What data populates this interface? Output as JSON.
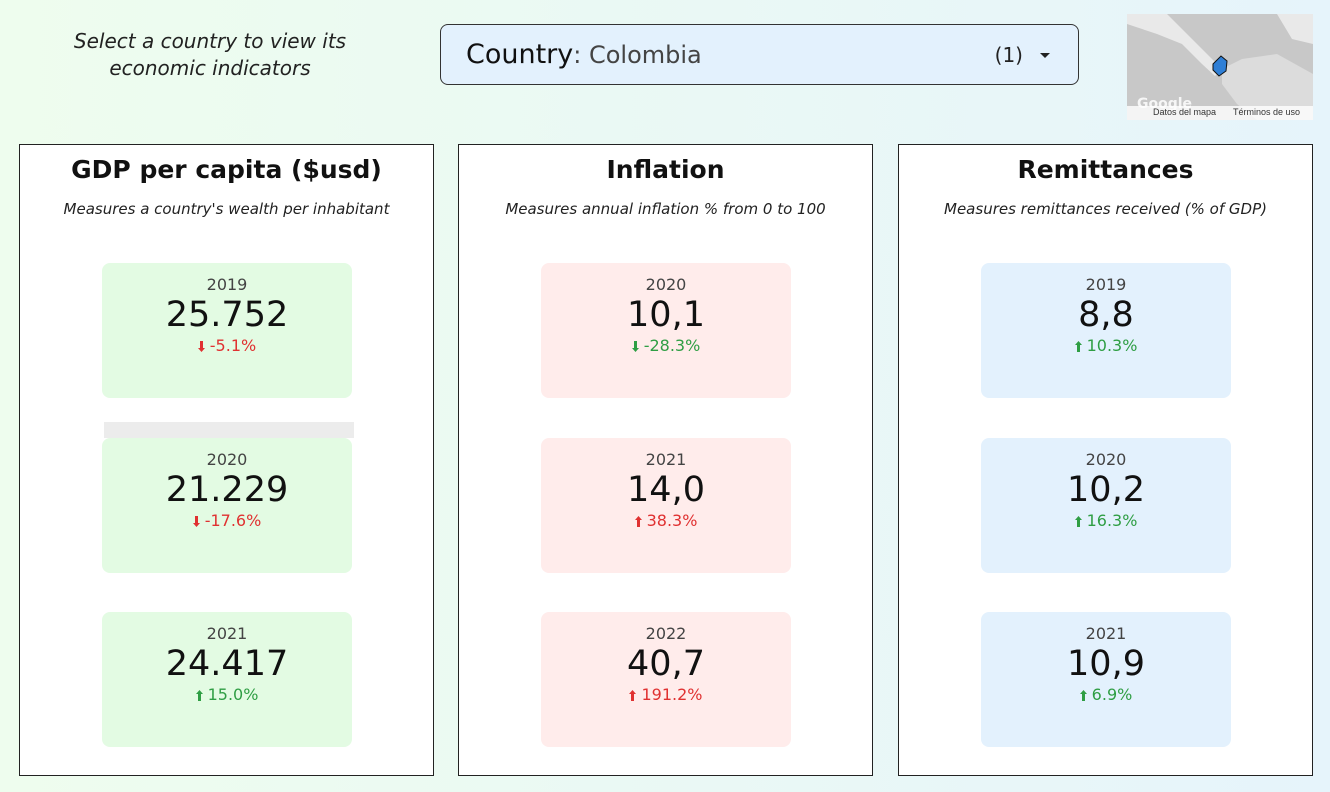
{
  "header": {
    "prompt": "Select a country to view its economic indicators",
    "selector": {
      "label": "Country",
      "value": ": Colombia",
      "count": "(1)"
    },
    "map": {
      "logo": "Google",
      "data_link": "Datos del mapa",
      "terms_link": "Términos de uso"
    }
  },
  "panels": [
    {
      "title": "GDP per capita ($usd)",
      "subtitle": "Measures a country's wealth per inhabitant",
      "card_color": "#e3fbe3",
      "cards": [
        {
          "year": "2019",
          "value": "25.752",
          "change": "-5.1%",
          "direction": "down",
          "change_color": "#e03131"
        },
        {
          "year": "2020",
          "value": "21.229",
          "change": "-17.6%",
          "direction": "down",
          "change_color": "#e03131"
        },
        {
          "year": "2021",
          "value": "24.417",
          "change": "15.0%",
          "direction": "up",
          "change_color": "#2f9e44"
        }
      ]
    },
    {
      "title": "Inflation",
      "subtitle": "Measures annual inflation % from 0 to 100",
      "card_color": "#ffeceb",
      "cards": [
        {
          "year": "2020",
          "value": "10,1",
          "change": "-28.3%",
          "direction": "down",
          "change_color": "#2f9e44"
        },
        {
          "year": "2021",
          "value": "14,0",
          "change": "38.3%",
          "direction": "up",
          "change_color": "#e03131"
        },
        {
          "year": "2022",
          "value": "40,7",
          "change": "191.2%",
          "direction": "up",
          "change_color": "#e03131"
        }
      ]
    },
    {
      "title": "Remittances",
      "subtitle": "Measures remittances received (% of GDP)",
      "card_color": "#e3f1fd",
      "cards": [
        {
          "year": "2019",
          "value": "8,8",
          "change": "10.3%",
          "direction": "up",
          "change_color": "#2f9e44"
        },
        {
          "year": "2020",
          "value": "10,2",
          "change": "16.3%",
          "direction": "up",
          "change_color": "#2f9e44"
        },
        {
          "year": "2021",
          "value": "10,9",
          "change": "6.9%",
          "direction": "up",
          "change_color": "#2f9e44"
        }
      ]
    }
  ]
}
